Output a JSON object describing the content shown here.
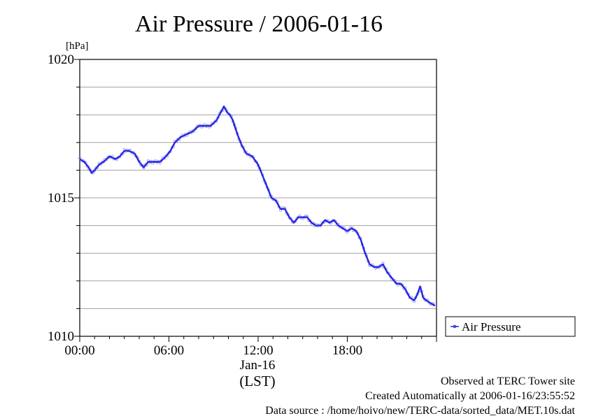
{
  "title": "Air Pressure / 2006-01-16",
  "footer": {
    "line1": "Observed at TERC Tower site",
    "line2": "Created Automatically at 2006-01-16/23:55:52",
    "line3": "Data source : /home/hoivo/new/TERC-data/sorted_data/MET.10s.dat"
  },
  "colors": {
    "series": "#2626e6",
    "marker": "#9a9af0",
    "grid": "#a0a0a0"
  },
  "chart_data": {
    "type": "line",
    "title": "Air Pressure / 2006-01-16",
    "ylabel": "[hPa]",
    "xlabel": "(LST)",
    "date_label": "Jan-16",
    "ylim": [
      1010,
      1020
    ],
    "xlim_hours": [
      0,
      24
    ],
    "x_ticks": [
      {
        "value": 0,
        "label": "00:00"
      },
      {
        "value": 6,
        "label": "06:00"
      },
      {
        "value": 12,
        "label": "12:00"
      },
      {
        "value": 18,
        "label": "18:00"
      }
    ],
    "y_ticks": [
      {
        "value": 1010,
        "label": "1010"
      },
      {
        "value": 1015,
        "label": "1015"
      },
      {
        "value": 1020,
        "label": "1020"
      }
    ],
    "grid": true,
    "legend": {
      "position": "right",
      "entries": [
        "Air Pressure"
      ]
    },
    "series": [
      {
        "name": "Air Pressure",
        "x_hours": [
          0,
          0.3,
          0.6,
          0.8,
          1.0,
          1.3,
          1.6,
          2.0,
          2.4,
          2.7,
          3.0,
          3.3,
          3.7,
          4.0,
          4.3,
          4.6,
          5.0,
          5.4,
          5.8,
          6.1,
          6.4,
          6.8,
          7.2,
          7.6,
          8.0,
          8.4,
          8.8,
          9.2,
          9.5,
          9.7,
          9.9,
          10.1,
          10.3,
          10.6,
          10.9,
          11.2,
          11.6,
          12.0,
          12.3,
          12.6,
          12.9,
          13.2,
          13.5,
          13.8,
          14.1,
          14.4,
          14.7,
          15.0,
          15.3,
          15.6,
          15.9,
          16.2,
          16.5,
          16.8,
          17.1,
          17.4,
          17.7,
          18.0,
          18.3,
          18.6,
          18.9,
          19.2,
          19.5,
          19.8,
          20.1,
          20.4,
          20.7,
          21.0,
          21.3,
          21.6,
          21.9,
          22.2,
          22.5,
          22.7,
          22.9,
          23.1,
          23.3,
          23.6,
          23.9
        ],
        "values": [
          1016.4,
          1016.3,
          1016.1,
          1015.9,
          1016.0,
          1016.2,
          1016.3,
          1016.5,
          1016.4,
          1016.5,
          1016.7,
          1016.7,
          1016.6,
          1016.3,
          1016.1,
          1016.3,
          1016.3,
          1016.3,
          1016.5,
          1016.7,
          1017.0,
          1017.2,
          1017.3,
          1017.4,
          1017.6,
          1017.6,
          1017.6,
          1017.8,
          1018.1,
          1018.3,
          1018.1,
          1018.0,
          1017.8,
          1017.3,
          1016.9,
          1016.6,
          1016.5,
          1016.2,
          1015.8,
          1015.4,
          1015.0,
          1014.9,
          1014.6,
          1014.6,
          1014.3,
          1014.1,
          1014.3,
          1014.3,
          1014.3,
          1014.1,
          1014.0,
          1014.0,
          1014.2,
          1014.1,
          1014.2,
          1014.0,
          1013.9,
          1013.8,
          1013.9,
          1013.8,
          1013.5,
          1013.0,
          1012.6,
          1012.5,
          1012.5,
          1012.6,
          1012.3,
          1012.1,
          1011.9,
          1011.9,
          1011.7,
          1011.4,
          1011.3,
          1011.5,
          1011.8,
          1011.4,
          1011.3,
          1011.2,
          1011.1
        ]
      }
    ]
  }
}
